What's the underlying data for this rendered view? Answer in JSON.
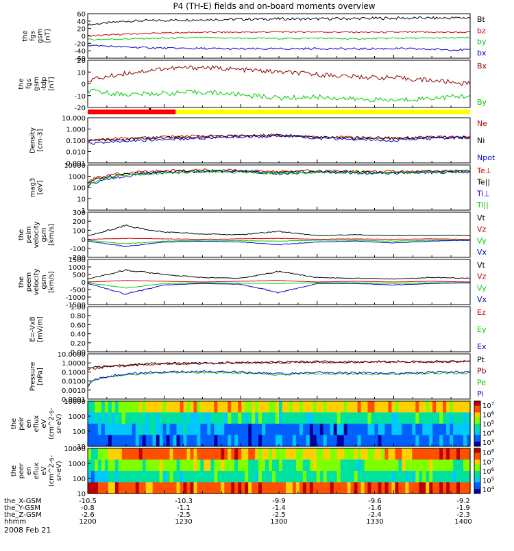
{
  "title": "P4 (TH-E) fields and on-board moments overview",
  "date_label": "2008 Feb 21",
  "chart_data": [
    {
      "type": "line",
      "panel": "fgs-gsm",
      "ylabel": [
        "the",
        "fgs",
        "gsm",
        "[nT]"
      ],
      "ticks": [
        "60",
        "40",
        "20",
        "0",
        "-20",
        "-40",
        "-60"
      ],
      "series": [
        {
          "name": "Bt",
          "color": "#000000",
          "values": [
            30,
            40,
            42,
            44,
            45,
            46,
            46,
            47,
            48,
            48,
            49
          ]
        },
        {
          "name": "bz",
          "color": "#cc0000",
          "values": [
            0,
            5,
            8,
            10,
            10,
            11,
            11,
            10,
            10,
            10,
            10
          ]
        },
        {
          "name": "by",
          "color": "#00cc00",
          "values": [
            -10,
            -8,
            -6,
            -5,
            -6,
            -7,
            -6,
            -8,
            -6,
            -6,
            -5
          ]
        },
        {
          "name": "bx",
          "color": "#0000cc",
          "values": [
            -25,
            -30,
            -33,
            -34,
            -35,
            -35,
            -34,
            -35,
            -34,
            -36,
            -38
          ]
        }
      ]
    },
    {
      "type": "line",
      "panel": "fgs-gsm-detail",
      "ylabel": [
        "the",
        "fgs",
        "gsm",
        "-tdp",
        "[nT]"
      ],
      "ticks": [
        "20",
        "10",
        "0",
        "-10",
        "-20"
      ],
      "series": [
        {
          "name": "Bx",
          "color": "#8b0000",
          "values": [
            3,
            9,
            13,
            14,
            12,
            10,
            8,
            6,
            5,
            3,
            0
          ]
        },
        {
          "name": "By",
          "color": "#00cc00",
          "values": [
            -6,
            -9,
            -8,
            -7,
            -9,
            -12,
            -11,
            -13,
            -14,
            -12,
            -10
          ]
        }
      ]
    },
    {
      "type": "line",
      "panel": "density",
      "scale": "log",
      "ylabel": [
        "Density",
        "[cm-3]"
      ],
      "ticks": [
        "10.000",
        "1.000",
        "0.100",
        "0.010",
        "0.001"
      ],
      "series": [
        {
          "name": "Ne",
          "color": "#cc0000",
          "values": [
            0.1,
            0.15,
            0.2,
            0.25,
            0.25,
            0.3,
            0.2,
            0.18,
            0.17,
            0.19,
            0.2
          ]
        },
        {
          "name": "Ni",
          "color": "#000000",
          "values": [
            0.1,
            0.12,
            0.18,
            0.2,
            0.24,
            0.28,
            0.18,
            0.16,
            0.15,
            0.18,
            0.19
          ]
        },
        {
          "name": "Npot",
          "color": "#0000cc",
          "values": [
            0.05,
            0.08,
            0.12,
            0.15,
            0.2,
            0.25,
            0.15,
            0.12,
            0.1,
            0.15,
            0.17
          ]
        }
      ]
    },
    {
      "type": "line",
      "panel": "temperature",
      "scale": "log",
      "ylabel": [
        "mag3",
        "[eV]"
      ],
      "ticks": [
        "10000",
        "1000",
        "100",
        "10",
        "1"
      ],
      "series": [
        {
          "name": "Te⊥",
          "color": "#cc0000",
          "values": [
            300,
            2000,
            3000,
            3500,
            3200,
            2500,
            3000,
            2700,
            2600,
            2900,
            3000
          ]
        },
        {
          "name": "Te||",
          "color": "#000000",
          "values": [
            200,
            1500,
            2500,
            3000,
            2800,
            2000,
            2600,
            2300,
            2200,
            2500,
            2700
          ]
        },
        {
          "name": "Ti⊥",
          "color": "#0000cc",
          "values": [
            100,
            1000,
            2200,
            2600,
            2500,
            1700,
            2300,
            2000,
            1900,
            2200,
            2400
          ]
        },
        {
          "name": "Ti||",
          "color": "#00cc00",
          "values": [
            150,
            1200,
            2000,
            2500,
            2400,
            1800,
            2200,
            2100,
            2000,
            2300,
            2500
          ]
        }
      ]
    },
    {
      "type": "line",
      "panel": "ion-velocity",
      "ylabel": [
        "the",
        "peim",
        "velocity",
        "gsm",
        "[km/s]"
      ],
      "ticks": [
        "300",
        "200",
        "100",
        "0",
        "-100",
        "-200"
      ],
      "series": [
        {
          "name": "Vt",
          "color": "#000000",
          "values": [
            40,
            150,
            80,
            60,
            50,
            90,
            40,
            50,
            40,
            45,
            40
          ]
        },
        {
          "name": "Vz",
          "color": "#cc0000",
          "values": [
            0,
            10,
            5,
            0,
            5,
            10,
            0,
            5,
            0,
            5,
            0
          ]
        },
        {
          "name": "Vy",
          "color": "#00cc00",
          "values": [
            -10,
            -50,
            -20,
            -10,
            -15,
            -20,
            -10,
            -10,
            -20,
            -10,
            -10
          ]
        },
        {
          "name": "Vx",
          "color": "#0000cc",
          "values": [
            -20,
            -80,
            -30,
            -20,
            -30,
            -60,
            -30,
            -20,
            -40,
            -20,
            -10
          ]
        }
      ]
    },
    {
      "type": "line",
      "panel": "electron-velocity",
      "ylabel": [
        "the",
        "peem",
        "velocity",
        "gsm",
        "[km/s]"
      ],
      "ticks": [
        "1500",
        "1000",
        "500",
        "0",
        "-500",
        "-1000",
        "-1500"
      ],
      "series": [
        {
          "name": "Vt",
          "color": "#000000",
          "values": [
            200,
            800,
            500,
            300,
            250,
            700,
            300,
            250,
            200,
            300,
            250
          ]
        },
        {
          "name": "Vz",
          "color": "#cc0000",
          "values": [
            0,
            100,
            50,
            0,
            50,
            100,
            0,
            50,
            0,
            50,
            0
          ]
        },
        {
          "name": "Vy",
          "color": "#00cc00",
          "values": [
            -50,
            -400,
            -100,
            -50,
            -80,
            -100,
            -50,
            -50,
            -100,
            -50,
            -50
          ]
        },
        {
          "name": "Vx",
          "color": "#0000cc",
          "values": [
            -100,
            -800,
            -200,
            -100,
            -150,
            -700,
            -100,
            -100,
            -200,
            -100,
            -50
          ]
        }
      ]
    },
    {
      "type": "line",
      "panel": "e-field",
      "ylabel": [
        "E=-VxB",
        "[mV/m]"
      ],
      "ticks": [
        "1.00",
        "0.80",
        "0.60",
        "0.40",
        "0.20",
        "0.00"
      ],
      "series": [
        {
          "name": "Ez",
          "color": "#cc0000",
          "values": []
        },
        {
          "name": "Ey",
          "color": "#00cc00",
          "values": []
        },
        {
          "name": "Ex",
          "color": "#0000cc",
          "values": []
        }
      ]
    },
    {
      "type": "line",
      "panel": "pressure",
      "scale": "log",
      "ylabel": [
        "Pressure",
        "[nPa]"
      ],
      "ticks": [
        "10.0000",
        "1.0000",
        "0.1000",
        "0.0100",
        "0.0010",
        "0.0001"
      ],
      "series": [
        {
          "name": "Pt",
          "color": "#000000",
          "values": [
            0.3,
            0.6,
            0.9,
            1.0,
            1.1,
            1.2,
            1.3,
            1.3,
            1.4,
            1.4,
            1.5
          ]
        },
        {
          "name": "Pb",
          "color": "#8b0000",
          "values": [
            0.2,
            0.5,
            0.8,
            0.9,
            1.0,
            1.1,
            1.2,
            1.2,
            1.3,
            1.3,
            1.4
          ]
        },
        {
          "name": "Pe",
          "color": "#00cc00",
          "values": [
            0.003,
            0.05,
            0.08,
            0.09,
            0.08,
            0.05,
            0.07,
            0.06,
            0.06,
            0.07,
            0.08
          ]
        },
        {
          "name": "Pi",
          "color": "#0000cc",
          "values": [
            0.002,
            0.06,
            0.1,
            0.11,
            0.1,
            0.06,
            0.09,
            0.08,
            0.07,
            0.09,
            0.1
          ]
        }
      ]
    },
    {
      "type": "heatmap",
      "panel": "ion-energy-spectrogram",
      "ylabel": [
        "the",
        "peir",
        "en",
        "eflux",
        "eV",
        "(cm^2-s-",
        "sr-eV)"
      ],
      "ticks": [
        "10000",
        "1000",
        "100",
        "10"
      ],
      "colorbar_ticks": [
        "10^7",
        "10^6",
        "10^5",
        "10^4",
        "10^3"
      ],
      "intensity_bands": [
        [
          3,
          4,
          5,
          5,
          5,
          4,
          5,
          5,
          5,
          5,
          5
        ],
        [
          2,
          3,
          3,
          3,
          3,
          3,
          3,
          3,
          3,
          3,
          3
        ],
        [
          1,
          2,
          2,
          2,
          1,
          1,
          1,
          1,
          2,
          1,
          2
        ],
        [
          1,
          1,
          1,
          1,
          1,
          1,
          1,
          1,
          1,
          1,
          1
        ]
      ]
    },
    {
      "type": "heatmap",
      "panel": "electron-energy-spectrogram",
      "ylabel": [
        "the",
        "peer",
        "en",
        "eflux",
        "eV",
        "(cm^2-s-",
        "sr-eV)"
      ],
      "ticks": [
        "10000",
        "1000",
        "100",
        "10"
      ],
      "colorbar_ticks": [
        "10^8",
        "10^7",
        "10^6",
        "10^5",
        "10^4"
      ],
      "intensity_bands": [
        [
          3,
          6,
          6,
          6,
          6,
          4,
          5,
          4,
          5,
          6,
          6
        ],
        [
          3,
          4,
          4,
          4,
          4,
          3,
          4,
          3,
          4,
          4,
          4
        ],
        [
          2,
          3,
          3,
          3,
          3,
          3,
          3,
          3,
          3,
          3,
          3
        ],
        [
          6,
          6,
          6,
          6,
          6,
          6,
          6,
          6,
          6,
          6,
          6
        ]
      ]
    }
  ],
  "bar_segments": [
    {
      "color": "#ff0000",
      "from": 0,
      "to": 0.23
    },
    {
      "color": "#ffff00",
      "from": 0.23,
      "to": 1
    }
  ],
  "axis": {
    "rows": [
      {
        "label": "the_X-GSM",
        "values": [
          "-10.5",
          "-10.3",
          "-9.9",
          "-9.6",
          "-9.2"
        ]
      },
      {
        "label": "the_Y-GSM",
        "values": [
          "-0.8",
          "-1.1",
          "-1.4",
          "-1.6",
          "-1.9"
        ]
      },
      {
        "label": "the_Z-GSM",
        "values": [
          "-2.6",
          "-2.5",
          "-2.5",
          "-2.4",
          "-2.3"
        ]
      },
      {
        "label": "hhmm",
        "values": [
          "1200",
          "1230",
          "1300",
          "1330",
          "1400"
        ]
      }
    ]
  },
  "colors": {
    "frame": "#000000",
    "background": "#ffffff"
  }
}
